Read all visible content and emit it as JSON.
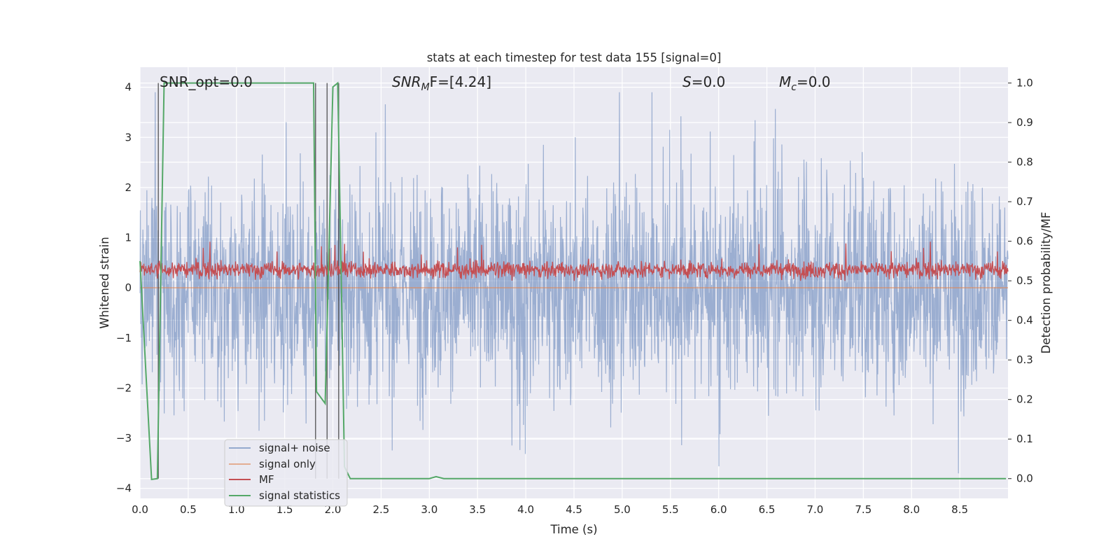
{
  "chart_data": {
    "type": "line",
    "title": "stats at each timestep for test data 155 [signal=0]",
    "xlabel": "Time (s)",
    "ylabel": "Whitened strain",
    "y2label": "Detection probability/MF",
    "xlim": [
      0.0,
      9.0
    ],
    "ylim": [
      -4.2,
      4.4
    ],
    "y2lim": [
      -0.05,
      1.04
    ],
    "xticks": [
      "0.0",
      "0.5",
      "1.0",
      "1.5",
      "2.0",
      "2.5",
      "3.0",
      "3.5",
      "4.0",
      "4.5",
      "5.0",
      "5.5",
      "6.0",
      "6.5",
      "7.0",
      "7.5",
      "8.0",
      "8.5"
    ],
    "yticks": [
      "4",
      "3",
      "2",
      "1",
      "0",
      "−1",
      "−2",
      "−3",
      "−4"
    ],
    "y2ticks": [
      "1.0",
      "0.9",
      "0.8",
      "0.7",
      "0.6",
      "0.5",
      "0.4",
      "0.3",
      "0.2",
      "0.1",
      "0.0"
    ],
    "grid": true,
    "legend_position": "lower-left",
    "annotations": {
      "snr_opt": "SNR_opt=0.0",
      "snr_mf_main": "SNR",
      "snr_mf_sub": "M",
      "snr_mf_rest": "F=[4.24]",
      "s_main": "S",
      "s_rest": "=0.0",
      "mc_main": "M",
      "mc_sub": "c",
      "mc_rest": "=0.0"
    },
    "series": [
      {
        "name": "signal+ noise",
        "color": "#4c72b0",
        "alpha": 0.5,
        "axis": "left",
        "typical_range": [
          -2.0,
          2.2
        ],
        "peak_range": [
          -3.7,
          3.9
        ]
      },
      {
        "name": "signal only",
        "color": "#dd8452",
        "axis": "left",
        "constant": 0.0
      },
      {
        "name": "MF",
        "color": "#c44e52",
        "axis": "right",
        "typical_range": [
          0.5,
          0.56
        ],
        "peak": 0.6
      },
      {
        "name": "signal statistics",
        "color": "#55a868",
        "axis": "right",
        "x": [
          0.0,
          0.12,
          0.18,
          0.25,
          1.8,
          1.83,
          1.92,
          2.0,
          2.05,
          2.08,
          2.12,
          2.18,
          3.0,
          3.07,
          3.15,
          8.98
        ],
        "y": [
          0.55,
          -0.002,
          0.0,
          1.0,
          1.0,
          0.22,
          0.19,
          0.99,
          1.0,
          0.6,
          0.03,
          0.0,
          0.0,
          0.005,
          0.0,
          0.0
        ]
      }
    ],
    "vertical_lines_x": [
      0.19,
      1.82,
      1.94,
      2.06
    ]
  }
}
